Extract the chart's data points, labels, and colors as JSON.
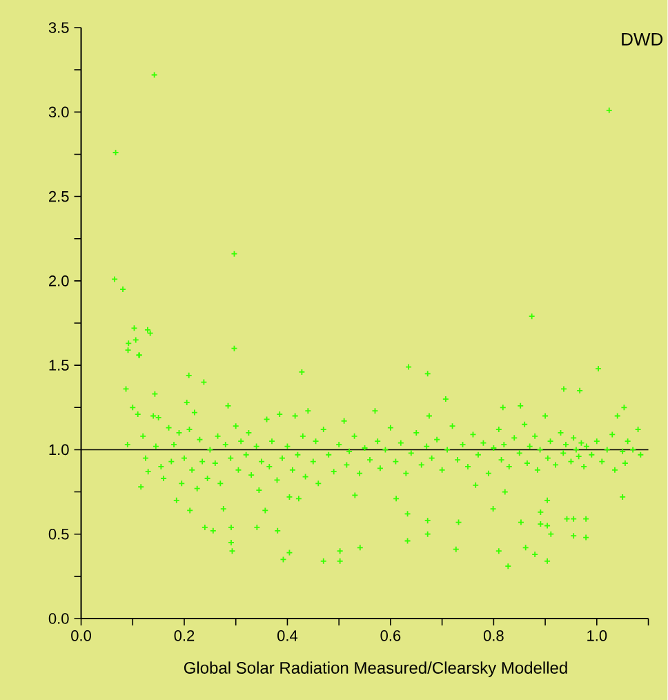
{
  "chart_data": {
    "type": "scatter",
    "title": "DWD",
    "xlabel": "Global Solar Radiation Measured/Clearsky Modelled",
    "xlim": [
      0,
      1.1
    ],
    "ylim": [
      0,
      3.5
    ],
    "xticks": [
      {
        "value": 0,
        "label": "0.0"
      },
      {
        "value": 0.1,
        "label": null
      },
      {
        "value": 0.2,
        "label": "0.2"
      },
      {
        "value": 0.3,
        "label": null
      },
      {
        "value": 0.4,
        "label": "0.4"
      },
      {
        "value": 0.5,
        "label": null
      },
      {
        "value": 0.6,
        "label": "0.6"
      },
      {
        "value": 0.7,
        "label": null
      },
      {
        "value": 0.8,
        "label": "0.8"
      },
      {
        "value": 0.9,
        "label": null
      },
      {
        "value": 1.0,
        "label": "1.0"
      },
      {
        "value": 1.1,
        "label": null
      }
    ],
    "yticks": [
      {
        "value": 0,
        "label": "0.0"
      },
      {
        "value": 0.25,
        "label": null
      },
      {
        "value": 0.5,
        "label": "0.5"
      },
      {
        "value": 0.75,
        "label": null
      },
      {
        "value": 1.0,
        "label": "1.0"
      },
      {
        "value": 1.25,
        "label": null
      },
      {
        "value": 1.5,
        "label": "1.5"
      },
      {
        "value": 1.75,
        "label": null
      },
      {
        "value": 2.0,
        "label": "2.0"
      },
      {
        "value": 2.25,
        "label": null
      },
      {
        "value": 2.5,
        "label": "2.5"
      },
      {
        "value": 2.75,
        "label": null
      },
      {
        "value": 3.0,
        "label": "3.0"
      },
      {
        "value": 3.25,
        "label": null
      },
      {
        "value": 3.5,
        "label": "3.5"
      }
    ],
    "marker": "cross",
    "grid": false,
    "ref_lines": [
      {
        "axis": "y",
        "value": 1.0,
        "color": "#000000"
      }
    ],
    "series": [
      {
        "color": "#33ff00",
        "x": [
          0.067,
          0.142,
          1.024,
          0.065,
          0.081,
          0.297,
          0.874,
          0.103,
          0.129,
          0.134,
          0.092,
          0.106,
          0.091,
          0.112,
          0.297,
          1.003,
          0.635,
          0.672,
          0.428,
          0.087,
          0.113,
          0.143,
          0.209,
          0.238,
          0.707,
          0.936,
          0.967,
          0.818,
          0.852,
          1.053,
          0.116,
          0.185,
          0.211,
          0.24,
          0.256,
          0.276,
          0.291,
          0.291,
          0.293,
          0.341,
          0.357,
          0.381,
          0.392,
          0.404,
          0.404,
          0.422,
          0.47,
          0.502,
          0.502,
          0.541,
          0.531,
          0.611,
          0.633,
          0.633,
          0.672,
          0.672,
          0.727,
          0.732,
          0.765,
          0.799,
          0.81,
          0.822,
          0.828,
          0.853,
          0.862,
          0.88,
          0.891,
          0.891,
          0.904,
          0.904,
          0.904,
          0.911,
          0.942,
          0.955,
          0.955,
          0.979,
          0.979,
          1.05,
          0.09,
          0.1,
          0.11,
          0.12,
          0.125,
          0.13,
          0.14,
          0.145,
          0.15,
          0.155,
          0.16,
          0.17,
          0.175,
          0.18,
          0.19,
          0.195,
          0.2,
          0.205,
          0.21,
          0.215,
          0.22,
          0.225,
          0.23,
          0.235,
          0.245,
          0.25,
          0.26,
          0.265,
          0.27,
          0.28,
          0.285,
          0.29,
          0.3,
          0.305,
          0.31,
          0.32,
          0.325,
          0.33,
          0.34,
          0.345,
          0.35,
          0.36,
          0.365,
          0.37,
          0.38,
          0.385,
          0.39,
          0.4,
          0.41,
          0.415,
          0.42,
          0.43,
          0.435,
          0.44,
          0.45,
          0.455,
          0.46,
          0.47,
          0.48,
          0.49,
          0.5,
          0.51,
          0.515,
          0.52,
          0.53,
          0.54,
          0.55,
          0.56,
          0.57,
          0.575,
          0.58,
          0.59,
          0.6,
          0.61,
          0.62,
          0.63,
          0.64,
          0.65,
          0.66,
          0.67,
          0.675,
          0.68,
          0.69,
          0.7,
          0.71,
          0.72,
          0.73,
          0.74,
          0.75,
          0.76,
          0.77,
          0.78,
          0.79,
          0.8,
          0.81,
          0.815,
          0.82,
          0.83,
          0.84,
          0.85,
          0.86,
          0.865,
          0.87,
          0.88,
          0.885,
          0.89,
          0.9,
          0.905,
          0.91,
          0.92,
          0.93,
          0.935,
          0.94,
          0.95,
          0.955,
          0.96,
          0.965,
          0.97,
          0.975,
          0.98,
          0.99,
          1.0,
          1.01,
          1.02,
          1.03,
          1.035,
          1.04,
          1.05,
          1.055,
          1.06,
          1.07,
          1.08,
          1.085
        ],
        "values": [
          2.76,
          3.22,
          3.01,
          2.01,
          1.95,
          2.16,
          1.79,
          1.72,
          1.71,
          1.69,
          1.63,
          1.65,
          1.59,
          1.56,
          1.6,
          1.48,
          1.49,
          1.45,
          1.46,
          1.36,
          1.56,
          1.33,
          1.44,
          1.4,
          1.3,
          1.36,
          1.35,
          1.25,
          1.26,
          1.25,
          0.78,
          0.7,
          0.64,
          0.54,
          0.52,
          0.65,
          0.54,
          0.45,
          0.4,
          0.54,
          0.64,
          0.52,
          0.35,
          0.39,
          0.72,
          0.71,
          0.34,
          0.4,
          0.34,
          0.42,
          0.73,
          0.71,
          0.62,
          0.46,
          0.58,
          0.5,
          0.41,
          0.57,
          0.79,
          0.65,
          0.4,
          0.75,
          0.31,
          0.57,
          0.42,
          0.38,
          0.63,
          0.56,
          0.55,
          0.34,
          0.7,
          0.5,
          0.59,
          0.59,
          0.49,
          0.59,
          0.48,
          0.72,
          1.03,
          1.25,
          1.21,
          1.08,
          0.95,
          0.87,
          1.2,
          1.02,
          1.19,
          0.9,
          0.83,
          1.13,
          0.93,
          1.03,
          1.1,
          0.8,
          0.95,
          1.28,
          1.12,
          0.88,
          1.22,
          0.77,
          1.06,
          0.93,
          0.83,
          1.0,
          0.92,
          1.08,
          0.8,
          1.03,
          1.26,
          0.95,
          1.14,
          0.88,
          1.05,
          0.97,
          1.1,
          0.85,
          1.02,
          0.76,
          0.93,
          1.18,
          0.9,
          1.05,
          0.82,
          1.21,
          0.95,
          1.02,
          0.88,
          1.2,
          0.97,
          1.08,
          0.84,
          1.23,
          0.93,
          1.05,
          0.8,
          1.12,
          0.97,
          0.87,
          1.03,
          1.17,
          0.91,
          0.99,
          1.08,
          0.86,
          1.01,
          0.94,
          1.23,
          1.05,
          0.89,
          1.0,
          1.13,
          0.93,
          1.04,
          0.86,
          0.98,
          1.1,
          0.91,
          1.02,
          1.2,
          0.95,
          1.06,
          0.88,
          1.0,
          1.14,
          0.94,
          1.03,
          0.9,
          1.09,
          0.97,
          1.04,
          0.86,
          1.01,
          1.12,
          0.94,
          1.03,
          0.9,
          1.07,
          0.98,
          1.15,
          0.92,
          1.02,
          1.08,
          0.88,
          1.0,
          1.2,
          0.95,
          1.05,
          0.91,
          1.1,
          0.98,
          1.03,
          0.93,
          1.07,
          1.0,
          0.96,
          1.04,
          0.9,
          1.02,
          0.97,
          1.05,
          0.93,
          1.0,
          1.09,
          0.88,
          1.2,
          0.99,
          0.92,
          1.05,
          1.0,
          1.12,
          0.97
        ]
      }
    ]
  }
}
